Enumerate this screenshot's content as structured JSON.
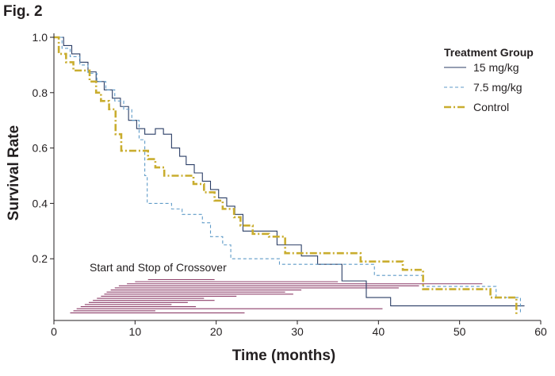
{
  "figure_label": "Fig. 2",
  "chart_data": {
    "type": "line",
    "step": true,
    "xlabel": "Time (months)",
    "ylabel": "Survival Rate",
    "xlim": [
      0,
      60
    ],
    "ylim": [
      0,
      1.0
    ],
    "x_ticks": [
      "0",
      "10",
      "20",
      "30",
      "40",
      "50",
      "60"
    ],
    "y_ticks": [
      "0.2",
      "0.4",
      "0.6",
      "0.8",
      "1.0"
    ],
    "grid": false,
    "legend": {
      "title": "Treatment Group",
      "position": "top-right",
      "entries": [
        "15 mg/kg",
        "7.5 mg/kg",
        "Control"
      ]
    },
    "colors": {
      "s15": "#2b3e66",
      "s75": "#5f9bc8",
      "control": "#c9ad2f",
      "crossover": "#8e3f6a",
      "axis": "#231f20"
    },
    "annotation": "Start and Stop of Crossover",
    "series": [
      {
        "name": "15 mg/kg",
        "style": "solid",
        "x": [
          0,
          1.2,
          2.2,
          3.2,
          4.2,
          5.2,
          6.2,
          7.2,
          8.2,
          9.2,
          10.2,
          11.2,
          12.5,
          13.5,
          14.5,
          15.5,
          16.3,
          17.3,
          18.3,
          19.3,
          20.3,
          21.3,
          22.3,
          23.3,
          27.5,
          30.5,
          32.5,
          35.5,
          38.5,
          41.5,
          58
        ],
        "y": [
          1.0,
          0.97,
          0.94,
          0.91,
          0.875,
          0.84,
          0.81,
          0.78,
          0.75,
          0.7,
          0.67,
          0.65,
          0.67,
          0.65,
          0.6,
          0.57,
          0.54,
          0.51,
          0.48,
          0.45,
          0.42,
          0.39,
          0.36,
          0.3,
          0.25,
          0.21,
          0.18,
          0.12,
          0.06,
          0.03,
          0.03
        ]
      },
      {
        "name": "7.5 mg/kg",
        "style": "dashed",
        "x": [
          0,
          1.0,
          2.0,
          3.2,
          4.2,
          5.3,
          6.4,
          7.5,
          8.6,
          9.6,
          10.5,
          11.2,
          11.5,
          14.5,
          15.8,
          18.3,
          19.3,
          20.8,
          21.8,
          24.8,
          27.8,
          30.5,
          39.5,
          40.5,
          45.5,
          54.5,
          57.5
        ],
        "y": [
          1.0,
          0.96,
          0.93,
          0.9,
          0.87,
          0.84,
          0.81,
          0.77,
          0.74,
          0.7,
          0.63,
          0.5,
          0.4,
          0.38,
          0.36,
          0.33,
          0.28,
          0.25,
          0.2,
          0.2,
          0.18,
          0.18,
          0.14,
          0.14,
          0.1,
          0.06,
          0.0
        ]
      },
      {
        "name": "Control",
        "style": "dashdot",
        "x": [
          0,
          0.6,
          1.5,
          2.4,
          4.4,
          5.2,
          5.8,
          6.8,
          7.6,
          8.3,
          11.6,
          12.5,
          13.6,
          17.2,
          18.5,
          19.8,
          20.8,
          22.2,
          23.0,
          24.5,
          26.5,
          28.5,
          37.8,
          38.5,
          43.0,
          45.5,
          53.8,
          57.0
        ],
        "y": [
          1.0,
          0.94,
          0.91,
          0.88,
          0.84,
          0.8,
          0.77,
          0.74,
          0.65,
          0.59,
          0.56,
          0.53,
          0.5,
          0.47,
          0.44,
          0.41,
          0.38,
          0.35,
          0.32,
          0.29,
          0.28,
          0.22,
          0.19,
          0.19,
          0.16,
          0.09,
          0.06,
          0.0
        ]
      }
    ],
    "crossover_intervals": [
      [
        11.6,
        19.8
      ],
      [
        10.0,
        35.0
      ],
      [
        9.0,
        52.8
      ],
      [
        8.0,
        45.0
      ],
      [
        7.5,
        42.5
      ],
      [
        7.0,
        30.5
      ],
      [
        6.5,
        28.5
      ],
      [
        6.2,
        29.5
      ],
      [
        5.8,
        22.5
      ],
      [
        5.3,
        18.5
      ],
      [
        4.8,
        19.8
      ],
      [
        4.3,
        16.5
      ],
      [
        3.8,
        14.5
      ],
      [
        3.3,
        17.5
      ],
      [
        2.8,
        40.5
      ],
      [
        2.4,
        12.5
      ],
      [
        2.0,
        23.5
      ]
    ]
  }
}
